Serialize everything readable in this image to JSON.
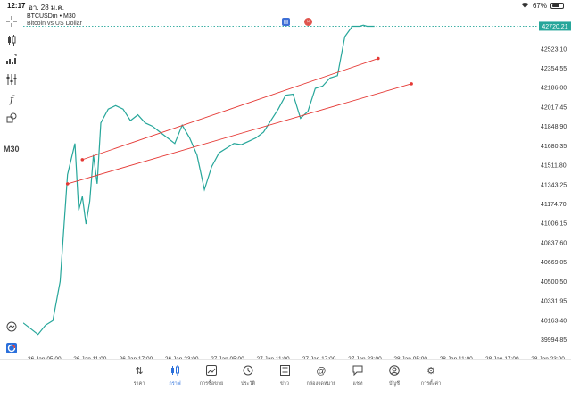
{
  "status_bar": {
    "time": "12:17",
    "date": "อา. 28 ม.ค.",
    "battery": "67%",
    "wifi_icon": "wifi-icon"
  },
  "instrument": {
    "symbol": "BTCUSDm",
    "separator": "•",
    "timeframe": "M30",
    "description": "Bitcoin vs US Dollar"
  },
  "toolbar_left": {
    "timeframe_label": "M30",
    "icons": [
      "crosshair-icon",
      "candles-icon",
      "indicator-icon",
      "settings-sliders-icon",
      "function-icon",
      "objects-icon"
    ],
    "bottom_icons": [
      "zoom-icon",
      "logo-icon"
    ]
  },
  "overlay_buttons": [
    "trade-panel-icon",
    "close-icon"
  ],
  "current_price": "42720.21",
  "colors": {
    "price_line": "#26a69a",
    "channel": "#e53935",
    "accent": "#2a6fdb"
  },
  "chart_data": {
    "type": "line",
    "y_ticks": [
      "42523.10",
      "42354.55",
      "42186.00",
      "42017.45",
      "41848.90",
      "41680.35",
      "41511.80",
      "41343.25",
      "41174.70",
      "41006.15",
      "40837.60",
      "40669.05",
      "40500.50",
      "40331.95",
      "40163.40",
      "39994.85"
    ],
    "x_ticks": [
      "26 Jan 05:00",
      "26 Jan 11:00",
      "26 Jan 17:00",
      "26 Jan 23:00",
      "27 Jan 05:00",
      "27 Jan 11:00",
      "27 Jan 17:00",
      "27 Jan 23:00",
      "28 Jan 05:00",
      "28 Jan 11:00",
      "28 Jan 17:00",
      "28 Jan 23:00"
    ],
    "ylim": [
      39890,
      42840
    ],
    "x_unit": "hours since 26 Jan 00:00",
    "x_range": [
      2.5,
      72
    ],
    "series": [
      {
        "x": [
          2.5,
          3.5,
          4.5,
          5.5,
          6.5,
          7.5,
          8.5,
          9.5,
          10.0,
          10.5,
          11.0,
          11.5,
          12.0,
          12.5,
          13.0,
          14.0,
          15.0,
          16.0,
          17.0,
          18.0,
          19.0,
          20.0,
          21.0,
          22.0,
          23.0,
          24.0,
          25.0,
          26.0,
          27.0,
          28.0,
          29.0,
          30.0,
          31.0,
          32.0,
          33.0,
          34.0,
          35.0,
          36.0,
          37.0,
          38.0,
          39.0,
          40.0,
          41.0,
          42.0,
          43.0,
          44.0,
          45.0,
          46.0,
          47.0,
          48.0,
          48.5,
          49.0,
          49.5,
          50.0
        ],
        "y": [
          40140,
          40090,
          40040,
          40120,
          40160,
          40500,
          41430,
          41700,
          41120,
          41240,
          41000,
          41200,
          41600,
          41350,
          41880,
          42000,
          42030,
          42000,
          41900,
          41950,
          41880,
          41850,
          41800,
          41750,
          41700,
          41860,
          41750,
          41600,
          41300,
          41500,
          41620,
          41660,
          41700,
          41690,
          41720,
          41750,
          41800,
          41900,
          42000,
          42120,
          42130,
          41920,
          41980,
          42180,
          42200,
          42270,
          42290,
          42630,
          42720,
          42720,
          42730,
          42720,
          42720,
          42720
        ]
      }
    ],
    "channel_lines": [
      {
        "x": [
          10.5,
          50.5
        ],
        "y": [
          41560,
          42440
        ]
      },
      {
        "x": [
          8.5,
          55.0
        ],
        "y": [
          41350,
          42220
        ]
      }
    ],
    "grid": false
  },
  "bottom_nav": [
    {
      "label": "ราคา",
      "icon": "quotes-icon",
      "active": false
    },
    {
      "label": "กราฟ",
      "icon": "chart-icon",
      "active": true
    },
    {
      "label": "การซื้อขาย",
      "icon": "trade-icon",
      "active": false
    },
    {
      "label": "ประวัติ",
      "icon": "history-icon",
      "active": false
    },
    {
      "label": "ข่าว",
      "icon": "news-icon",
      "active": false
    },
    {
      "label": "กล่องจดหมาย",
      "icon": "mailbox-icon",
      "active": false
    },
    {
      "label": "แชท",
      "icon": "chat-icon",
      "active": false
    },
    {
      "label": "บัญชี",
      "icon": "account-icon",
      "active": false
    },
    {
      "label": "การตั้งค่า",
      "icon": "settings-icon",
      "active": false
    }
  ]
}
